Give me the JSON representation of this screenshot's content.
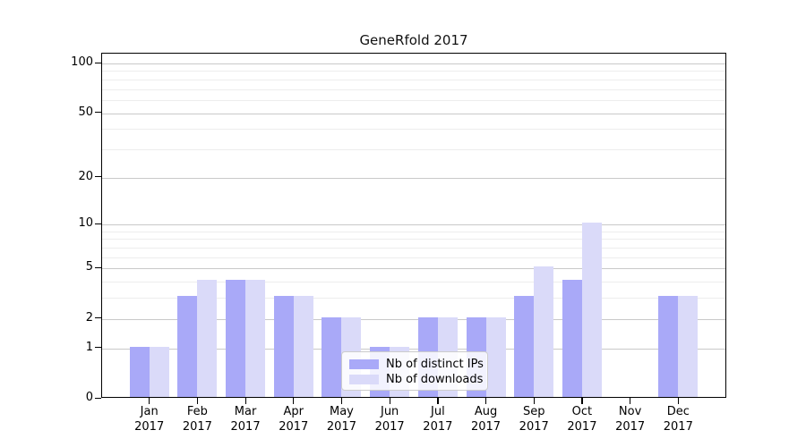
{
  "chart_data": {
    "type": "bar",
    "title": "GeneRfold 2017",
    "categories": [
      "Jan",
      "Feb",
      "Mar",
      "Apr",
      "May",
      "Jun",
      "Jul",
      "Aug",
      "Sep",
      "Oct",
      "Nov",
      "Dec"
    ],
    "x_tick_second_line": "2017",
    "series": [
      {
        "name": "Nb of distinct IPs",
        "color": "#a9a9f8",
        "values": [
          1,
          3,
          4,
          3,
          2,
          1,
          2,
          2,
          3,
          4,
          0,
          3
        ]
      },
      {
        "name": "Nb of downloads",
        "color": "#dadaf9",
        "values": [
          1,
          4,
          4,
          3,
          2,
          1,
          2,
          2,
          5,
          10,
          0,
          3
        ]
      }
    ],
    "yscale": "log1p",
    "ylim": [
      0,
      100
    ],
    "y_major_ticks": [
      0,
      1,
      2,
      5,
      10,
      20,
      50,
      100
    ],
    "y_minor_ticks": [
      3,
      4,
      6,
      7,
      8,
      9,
      30,
      40,
      60,
      70,
      80,
      90
    ],
    "grid": true,
    "legend_position": "inside-bottom-center",
    "colors": {
      "major_grid": "#c9c9c9",
      "minor_grid": "#ededed",
      "spine": "#000000",
      "background": "#ffffff"
    }
  }
}
